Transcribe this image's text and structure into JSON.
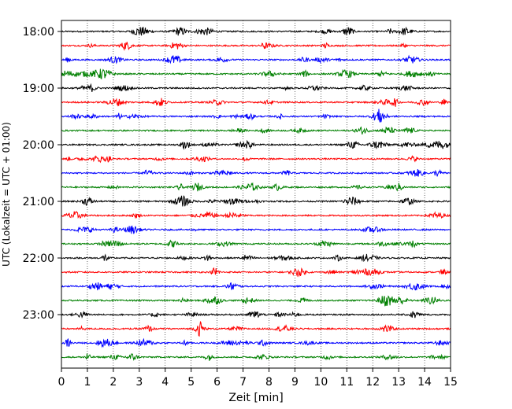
{
  "chart_data": {
    "type": "line",
    "xlabel": "Zeit  [min]",
    "ylabel": "UTC (Lokalzeit = UTC + 01:00)",
    "xlim": [
      0,
      15
    ],
    "x_ticks": [
      0,
      1,
      2,
      3,
      4,
      5,
      6,
      7,
      8,
      9,
      10,
      11,
      12,
      13,
      14,
      15
    ],
    "y_ticks": [
      {
        "row": 0,
        "label": "18:00"
      },
      {
        "row": 4,
        "label": "19:00"
      },
      {
        "row": 8,
        "label": "20:00"
      },
      {
        "row": 12,
        "label": "21:00"
      },
      {
        "row": 16,
        "label": "22:00"
      },
      {
        "row": 20,
        "label": "23:00"
      }
    ],
    "grid": "x-dotted",
    "trace_minutes": 15,
    "trace_start_times": [
      "18:00",
      "18:15",
      "18:30",
      "18:45",
      "19:00",
      "19:15",
      "19:30",
      "19:45",
      "20:00",
      "20:15",
      "20:30",
      "20:45",
      "21:00",
      "21:15",
      "21:30",
      "21:45",
      "22:00",
      "22:15",
      "22:30",
      "22:45",
      "23:00",
      "23:15",
      "23:30",
      "23:45"
    ],
    "trace_colors": [
      "#000000",
      "#ff0000",
      "#0000ff",
      "#008000"
    ]
  }
}
